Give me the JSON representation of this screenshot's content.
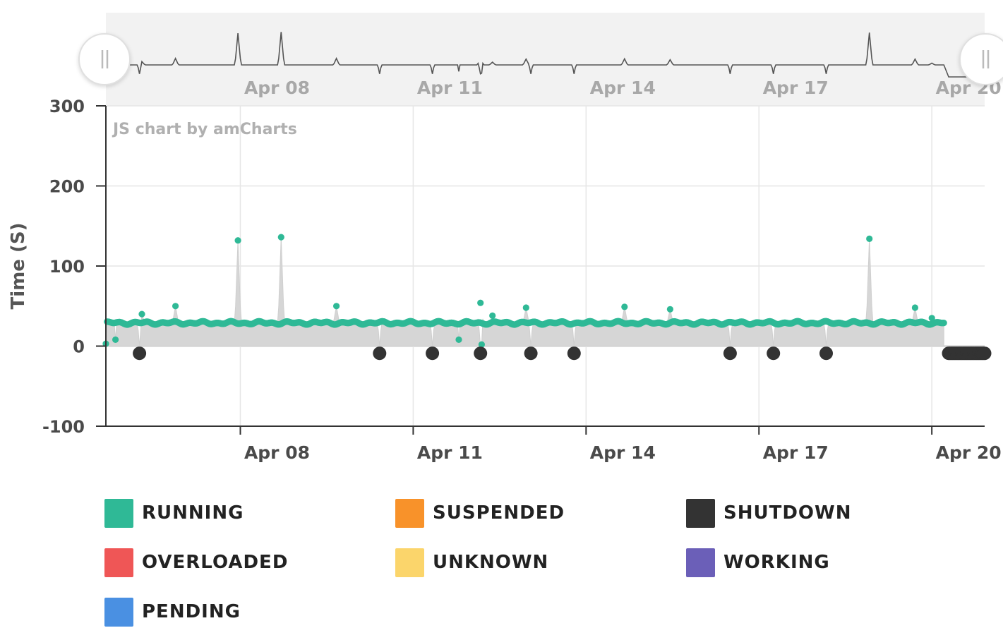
{
  "chart_data": {
    "type": "scatter",
    "title": "",
    "credit": "JS chart by amCharts",
    "ylabel": "Time (S)",
    "xlabel": "",
    "ylim": [
      -100,
      300
    ],
    "yticks": [
      300,
      200,
      100,
      0,
      -100
    ],
    "xlim": [
      "2021-04-05 16:00",
      "2021-04-20 22:00"
    ],
    "xticks": [
      {
        "date": "2021-04-08",
        "label": "Apr 08"
      },
      {
        "date": "2021-04-11",
        "label": "Apr 11"
      },
      {
        "date": "2021-04-14",
        "label": "Apr 14"
      },
      {
        "date": "2021-04-17",
        "label": "Apr 17"
      },
      {
        "date": "2021-04-20",
        "label": "Apr 20"
      }
    ],
    "grid": true,
    "baseline_value": 29,
    "running_series_end": "2021-04-20 05:00",
    "series": [
      {
        "name": "RUNNING",
        "color": "#2fb996",
        "highlighted_points": [
          {
            "date": "2021-04-05 16:00",
            "value": 3
          },
          {
            "date": "2021-04-05 20:00",
            "value": 8
          },
          {
            "date": "2021-04-06 07:00",
            "value": 40
          },
          {
            "date": "2021-04-06 21:00",
            "value": 50
          },
          {
            "date": "2021-04-07 23:00",
            "value": 132
          },
          {
            "date": "2021-04-08 17:00",
            "value": 136
          },
          {
            "date": "2021-04-09 16:00",
            "value": 50
          },
          {
            "date": "2021-04-11 19:00",
            "value": 8
          },
          {
            "date": "2021-04-12 04:00",
            "value": 54
          },
          {
            "date": "2021-04-12 04:30",
            "value": 2
          },
          {
            "date": "2021-04-12 09:00",
            "value": 38
          },
          {
            "date": "2021-04-12 23:00",
            "value": 48
          },
          {
            "date": "2021-04-14 16:00",
            "value": 49
          },
          {
            "date": "2021-04-15 11:00",
            "value": 46
          },
          {
            "date": "2021-04-18 22:00",
            "value": 134
          },
          {
            "date": "2021-04-19 17:00",
            "value": 48
          },
          {
            "date": "2021-04-20 00:00",
            "value": 35
          }
        ]
      },
      {
        "name": "SHUTDOWN",
        "color": "#333333",
        "points": [
          {
            "date": "2021-04-06 06:00",
            "value": -9
          },
          {
            "date": "2021-04-10 10:00",
            "value": -9
          },
          {
            "date": "2021-04-11 08:00",
            "value": -9
          },
          {
            "date": "2021-04-12 04:00",
            "value": -9
          },
          {
            "date": "2021-04-13 01:00",
            "value": -9
          },
          {
            "date": "2021-04-13 19:00",
            "value": -9
          },
          {
            "date": "2021-04-16 12:00",
            "value": -9
          },
          {
            "date": "2021-04-17 06:00",
            "value": -9
          },
          {
            "date": "2021-04-18 04:00",
            "value": -9
          }
        ],
        "continuous_run": {
          "start": "2021-04-20 07:00",
          "end": "2021-04-20 22:00",
          "value": -9
        }
      }
    ],
    "navigator": {
      "xticks": [
        {
          "date": "2021-04-08",
          "label": "Apr 08"
        },
        {
          "date": "2021-04-11",
          "label": "Apr 11"
        },
        {
          "date": "2021-04-14",
          "label": "Apr 14"
        },
        {
          "date": "2021-04-17",
          "label": "Apr 17"
        },
        {
          "date": "2021-04-20",
          "label": "Apr 20"
        }
      ]
    },
    "legend": {
      "placement": "bottom",
      "items": [
        {
          "name": "RUNNING",
          "color": "#2fb996"
        },
        {
          "name": "SUSPENDED",
          "color": "#f8922a"
        },
        {
          "name": "SHUTDOWN",
          "color": "#333333"
        },
        {
          "name": "OVERLOADED",
          "color": "#ef5656"
        },
        {
          "name": "UNKNOWN",
          "color": "#fbd56b"
        },
        {
          "name": "WORKING",
          "color": "#6b5fb8"
        },
        {
          "name": "PENDING",
          "color": "#4a90e2"
        }
      ]
    }
  }
}
